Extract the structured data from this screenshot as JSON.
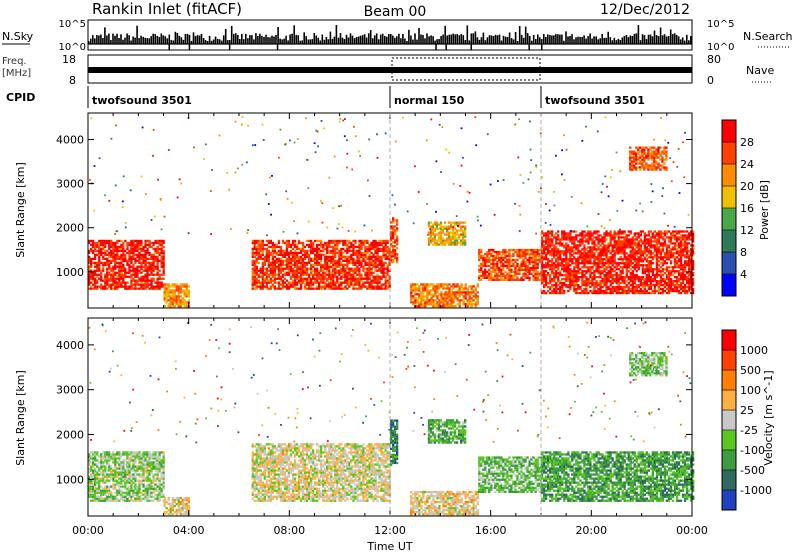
{
  "header": {
    "station": "Rankin Inlet (fitACF)",
    "beam": "Beam 00",
    "date": "12/Dec/2012"
  },
  "top_panels": {
    "nsky_label": "N.Sky",
    "nsearch_label": "N.Search",
    "freq_label_line1": "Freq.",
    "freq_label_line2": "[MHz]",
    "nave_label": "Nave",
    "cpid_label": "CPID",
    "left_ticks_nsky": [
      "10^5",
      "10^0"
    ],
    "right_ticks_nsky": [
      "10^5",
      "10^0"
    ],
    "left_ticks_freq": [
      "18",
      "8"
    ],
    "right_ticks_nave": [
      "80",
      "0"
    ],
    "cpid_segments": [
      {
        "start": 0,
        "end": 12,
        "label": "twofsound 3501"
      },
      {
        "start": 12,
        "end": 18,
        "label": "normal 150"
      },
      {
        "start": 18,
        "end": 24,
        "label": "twofsound 3501"
      }
    ]
  },
  "chart_data": [
    {
      "type": "heatmap",
      "title": "",
      "xlabel": "",
      "ylabel": "Slant Range [km]",
      "xlim": [
        0,
        24
      ],
      "ylim": [
        180,
        4600
      ],
      "yticks": [
        1000,
        2000,
        3000,
        4000
      ],
      "colorbar": {
        "label": "Power [dB]",
        "ticks": [
          "28",
          "24",
          "20",
          "16",
          "12",
          "8",
          "4"
        ],
        "colors": [
          "#0000ff",
          "#2a4fb0",
          "#2e7a5a",
          "#48a848",
          "#f0c000",
          "#ff8c00",
          "#ff4000",
          "#ff0000"
        ],
        "range": [
          0,
          30
        ]
      },
      "echo_bands": [
        {
          "t0": 0.0,
          "t1": 3.0,
          "r0": 600,
          "r1": 1700,
          "value": 27
        },
        {
          "t0": 3.0,
          "t1": 4.0,
          "r0": 200,
          "r1": 700,
          "value": 20
        },
        {
          "t0": 6.5,
          "t1": 12.0,
          "r0": 600,
          "r1": 1700,
          "value": 26
        },
        {
          "t0": 12.0,
          "t1": 12.3,
          "r0": 1200,
          "r1": 2200,
          "value": 24
        },
        {
          "t0": 13.5,
          "t1": 15.0,
          "r0": 1600,
          "r1": 2100,
          "value": 18
        },
        {
          "t0": 12.8,
          "t1": 15.5,
          "r0": 200,
          "r1": 700,
          "value": 22
        },
        {
          "t0": 15.5,
          "t1": 18.0,
          "r0": 800,
          "r1": 1500,
          "value": 24
        },
        {
          "t0": 18.0,
          "t1": 24.0,
          "r0": 500,
          "r1": 1900,
          "value": 27
        },
        {
          "t0": 21.5,
          "t1": 23.0,
          "r0": 3300,
          "r1": 3800,
          "value": 24
        }
      ]
    },
    {
      "type": "heatmap",
      "title": "",
      "xlabel": "Time UT",
      "ylabel": "Slant Range [km]",
      "xlim": [
        0,
        24
      ],
      "ylim": [
        180,
        4600
      ],
      "yticks": [
        1000,
        2000,
        3000,
        4000
      ],
      "xticks": [
        "00:00",
        "04:00",
        "08:00",
        "12:00",
        "16:00",
        "20:00",
        "00:00"
      ],
      "colorbar": {
        "label": "Velocity [m s^-1]",
        "ticks": [
          "1000",
          "500",
          "100",
          "25",
          "-25",
          "-100",
          "-500",
          "-1000"
        ],
        "colors": [
          "#2040c0",
          "#2e6a60",
          "#3c9c40",
          "#58c820",
          "#c8c8c8",
          "#ffb040",
          "#ff8000",
          "#ff4000",
          "#ff0000"
        ],
        "range": [
          -1200,
          1200
        ]
      },
      "echo_bands": [
        {
          "t0": 0.0,
          "t1": 3.0,
          "r0": 500,
          "r1": 1600,
          "value": -150
        },
        {
          "t0": 3.0,
          "t1": 4.0,
          "r0": 200,
          "r1": 600,
          "value": 150
        },
        {
          "t0": 6.5,
          "t1": 12.0,
          "r0": 500,
          "r1": 1800,
          "value": 60
        },
        {
          "t0": 12.0,
          "t1": 12.3,
          "r0": 1300,
          "r1": 2300,
          "value": -700
        },
        {
          "t0": 13.5,
          "t1": 15.0,
          "r0": 1800,
          "r1": 2300,
          "value": -400
        },
        {
          "t0": 12.8,
          "t1": 15.5,
          "r0": 200,
          "r1": 700,
          "value": 150
        },
        {
          "t0": 15.5,
          "t1": 18.0,
          "r0": 700,
          "r1": 1500,
          "value": -300
        },
        {
          "t0": 18.0,
          "t1": 24.0,
          "r0": 500,
          "r1": 1600,
          "value": -500
        },
        {
          "t0": 21.5,
          "t1": 23.0,
          "r0": 3300,
          "r1": 3800,
          "value": -200
        }
      ]
    }
  ]
}
